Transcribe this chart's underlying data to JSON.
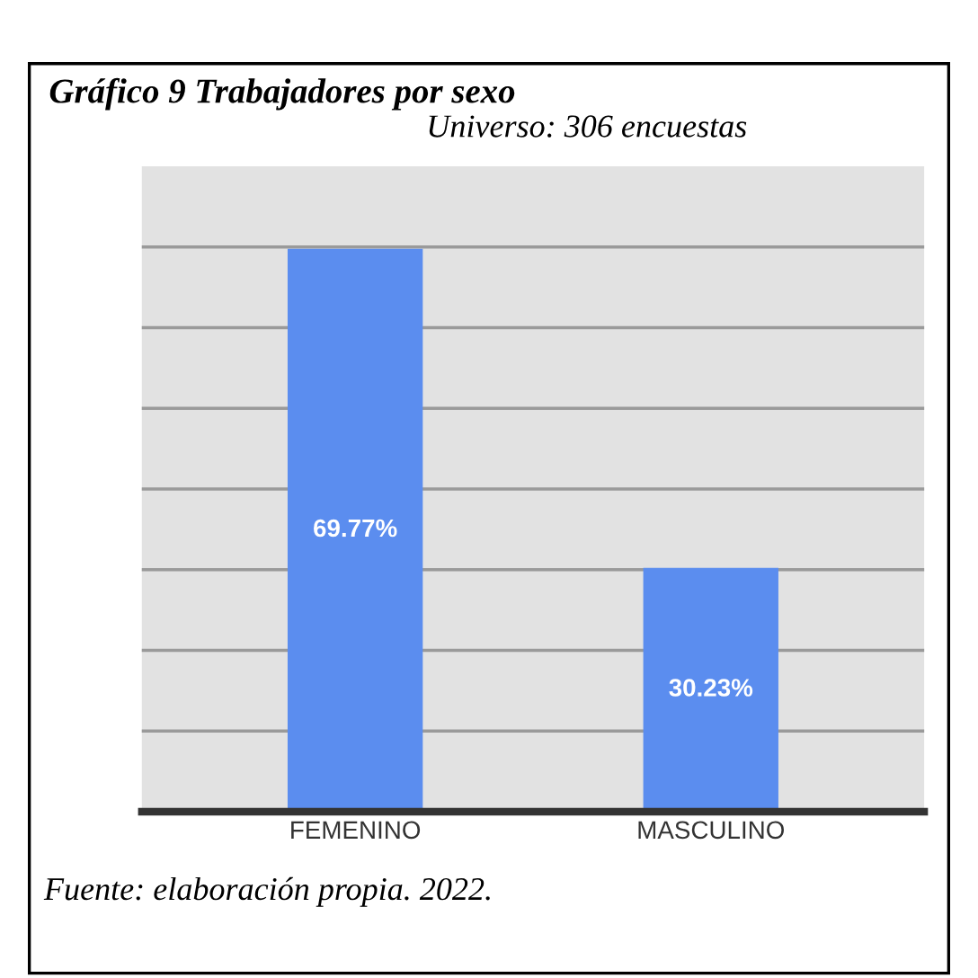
{
  "chart_data": {
    "type": "bar",
    "title": "Gráfico 9 Trabajadores por sexo",
    "subtitle": "Universo: 306 encuestas",
    "categories": [
      "FEMENINO",
      "MASCULINO"
    ],
    "values": [
      69.77,
      30.23
    ],
    "color": "#5b8def",
    "value_labels": [
      "69.77%",
      "30.23%"
    ],
    "ylim": [
      0,
      80
    ],
    "yticks": [
      {
        "value": 10,
        "label": null
      },
      {
        "value": 20,
        "label": null
      },
      {
        "value": 30,
        "label": null
      },
      {
        "value": 40,
        "label": null
      },
      {
        "value": 50,
        "label": null
      },
      {
        "value": 60,
        "label": null
      },
      {
        "value": 70,
        "label": null
      }
    ],
    "tick_labels": "x",
    "grid": "y",
    "annotations": [
      "Fuente: elaboración propia. 2022."
    ]
  }
}
